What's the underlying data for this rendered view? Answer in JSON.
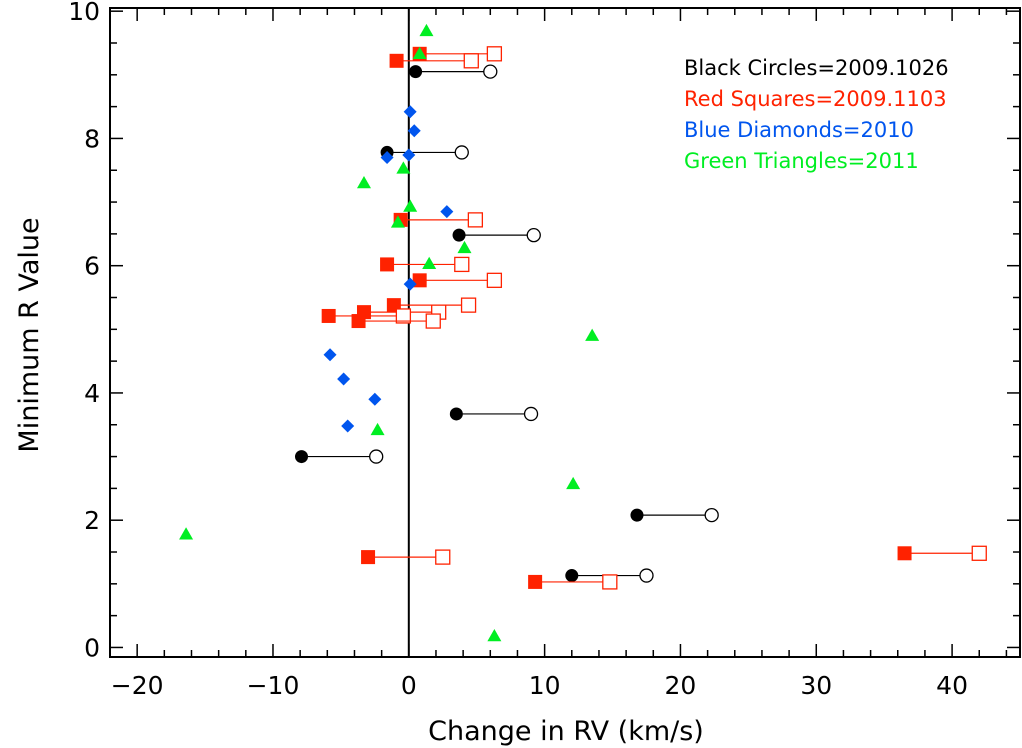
{
  "chart_data": {
    "type": "scatter",
    "title": "",
    "xlabel": "Change in RV (km/s)",
    "ylabel": "Minimum R Value",
    "xlim": [
      -22,
      45
    ],
    "ylim": [
      -0.15,
      10.05
    ],
    "x_ticks": [
      -20,
      -10,
      0,
      10,
      20,
      30,
      40
    ],
    "x_tick_labels": [
      "−20",
      "−10",
      "0",
      "10",
      "20",
      "30",
      "40"
    ],
    "y_ticks": [
      0,
      2,
      4,
      6,
      8,
      10
    ],
    "y_tick_labels": [
      "0",
      "2",
      "4",
      "6",
      "8",
      "10"
    ],
    "vertical_line_x": 0,
    "legend_position": "top-right",
    "colors": {
      "black": "#000000",
      "red": "#ff2200",
      "blue": "#0055ee",
      "green": "#00ee22"
    },
    "legend": [
      {
        "text": "Black Circles=2009.1026",
        "color": "#000000"
      },
      {
        "text": "Red Squares=2009.1103",
        "color": "#ff2200"
      },
      {
        "text": "Blue Diamonds=2010",
        "color": "#0055ee"
      },
      {
        "text": "Green Triangles=2011",
        "color": "#00ee22"
      }
    ],
    "series": [
      {
        "marker": "circle",
        "color": "#000000",
        "points": [
          {
            "x": 0.5,
            "y": 9.05,
            "x2": 6.0
          },
          {
            "x": -1.6,
            "y": 7.78,
            "x2": 3.9
          },
          {
            "x": 3.7,
            "y": 6.48,
            "x2": 9.2
          },
          {
            "x": 3.5,
            "y": 3.67,
            "x2": 9.0
          },
          {
            "x": -7.9,
            "y": 3.0,
            "x2": -2.4
          },
          {
            "x": 16.8,
            "y": 2.08,
            "x2": 22.3
          },
          {
            "x": 12.0,
            "y": 1.13,
            "x2": 17.5
          }
        ]
      },
      {
        "marker": "square",
        "color": "#ff2200",
        "points": [
          {
            "x": 0.8,
            "y": 9.33,
            "x2": 6.3
          },
          {
            "x": -0.9,
            "y": 9.22,
            "x2": 4.6
          },
          {
            "x": -0.6,
            "y": 6.72,
            "x2": 4.9
          },
          {
            "x": -1.6,
            "y": 6.02,
            "x2": 3.9
          },
          {
            "x": 0.8,
            "y": 5.77,
            "x2": 6.3
          },
          {
            "x": -1.1,
            "y": 5.38,
            "x2": 4.4
          },
          {
            "x": -3.3,
            "y": 5.27,
            "x2": 2.2
          },
          {
            "x": -5.9,
            "y": 5.21,
            "x2": -0.4
          },
          {
            "x": -3.7,
            "y": 5.13,
            "x2": 1.8
          },
          {
            "x": -3.0,
            "y": 1.42,
            "x2": 2.5
          },
          {
            "x": 36.5,
            "y": 1.48,
            "x2": 42.0
          },
          {
            "x": 9.3,
            "y": 1.03,
            "x2": 14.8
          }
        ]
      },
      {
        "marker": "diamond",
        "color": "#0055ee",
        "points": [
          {
            "x": 0.1,
            "y": 8.42
          },
          {
            "x": 0.4,
            "y": 8.12
          },
          {
            "x": 0.0,
            "y": 7.74
          },
          {
            "x": -1.6,
            "y": 7.7
          },
          {
            "x": 2.8,
            "y": 6.85
          },
          {
            "x": 0.1,
            "y": 5.71
          },
          {
            "x": -5.8,
            "y": 4.6
          },
          {
            "x": -4.8,
            "y": 4.22
          },
          {
            "x": -2.5,
            "y": 3.9
          },
          {
            "x": -4.5,
            "y": 3.48
          }
        ]
      },
      {
        "marker": "triangle",
        "color": "#00ee22",
        "points": [
          {
            "x": 1.3,
            "y": 9.69
          },
          {
            "x": 0.8,
            "y": 9.33
          },
          {
            "x": -3.3,
            "y": 7.3
          },
          {
            "x": -0.4,
            "y": 7.53
          },
          {
            "x": 0.1,
            "y": 6.93
          },
          {
            "x": -0.8,
            "y": 6.68
          },
          {
            "x": 4.1,
            "y": 6.28
          },
          {
            "x": 1.5,
            "y": 6.03
          },
          {
            "x": 13.5,
            "y": 4.9
          },
          {
            "x": -2.3,
            "y": 3.42
          },
          {
            "x": 12.1,
            "y": 2.57
          },
          {
            "x": -16.4,
            "y": 1.78
          },
          {
            "x": 6.3,
            "y": 0.18
          }
        ]
      }
    ]
  }
}
